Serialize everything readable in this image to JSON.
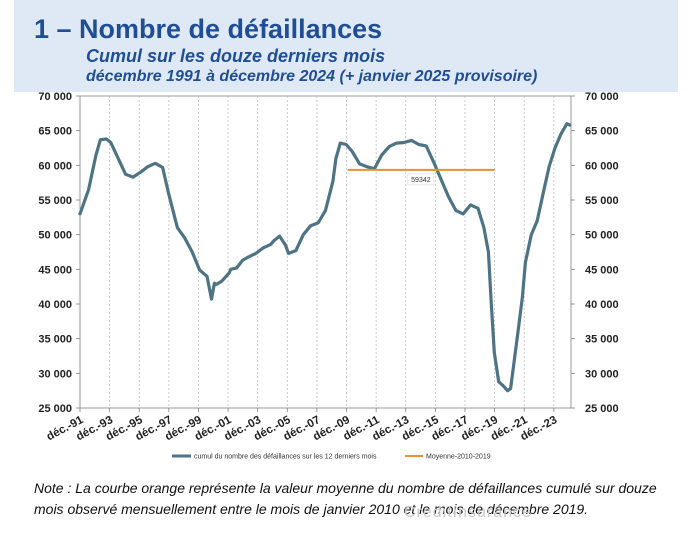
{
  "header": {
    "title": "1 – Nombre de défaillances",
    "subtitle": "Cumul sur les douze derniers mois",
    "period": "décembre 1991 à décembre 2024 (+ janvier 2025 provisoire)"
  },
  "note": "Note : La courbe orange représente la valeur moyenne du nombre de défaillances cumulé sur douze mois observé mensuellement entre le mois de janvier 2010 et le mois de décembre 2019.",
  "watermark": "CreditInsurance",
  "colors": {
    "series": "#4e7384",
    "average": "#e8912f",
    "title": "#1f4e96"
  },
  "chart_data": {
    "type": "line",
    "ylim": [
      25000,
      70000
    ],
    "yticks": [
      25000,
      30000,
      35000,
      40000,
      45000,
      50000,
      55000,
      60000,
      65000,
      70000
    ],
    "ytick_labels": [
      "25 000",
      "30 000",
      "35 000",
      "40 000",
      "45 000",
      "50 000",
      "55 000",
      "60 000",
      "65 000",
      "70 000"
    ],
    "xlim": [
      1991.92,
      2025.08
    ],
    "xticks": [
      1991.92,
      1993.92,
      1995.92,
      1997.92,
      1999.92,
      2001.92,
      2003.92,
      2005.92,
      2007.92,
      2009.92,
      2011.92,
      2013.92,
      2015.92,
      2017.92,
      2019.92,
      2021.92,
      2023.92
    ],
    "xtick_labels": [
      "déc.-91",
      "déc.-93",
      "déc.-95",
      "déc.-97",
      "déc.-99",
      "déc.-01",
      "déc.-03",
      "déc.-05",
      "déc.-07",
      "déc.-09",
      "déc.-11",
      "déc.-13",
      "déc.-15",
      "déc.-17",
      "déc.-19",
      "déc.-21",
      "déc.-23"
    ],
    "series": [
      {
        "name": "cumul du nombre des défaillances sur les 12 derniers mois",
        "x": [
          1991.92,
          1992.5,
          1993.0,
          1993.3,
          1993.7,
          1994.0,
          1994.5,
          1995.0,
          1995.5,
          1996.0,
          1996.5,
          1997.0,
          1997.5,
          1997.9,
          1998.5,
          1999.0,
          1999.5,
          2000.0,
          2000.5,
          2000.8,
          2001.0,
          2001.1,
          2001.5,
          2002.0,
          2002.1,
          2002.5,
          2002.9,
          2003.3,
          2003.8,
          2004.3,
          2004.8,
          2005.0,
          2005.4,
          2005.8,
          2006.0,
          2006.5,
          2007.0,
          2007.5,
          2008.0,
          2008.5,
          2009.0,
          2009.2,
          2009.5,
          2009.9,
          2010.3,
          2010.8,
          2011.3,
          2011.8,
          2012.3,
          2012.8,
          2013.3,
          2013.8,
          2014.3,
          2014.8,
          2015.3,
          2015.8,
          2016.3,
          2016.8,
          2017.3,
          2017.8,
          2018.3,
          2018.8,
          2019.2,
          2019.5,
          2019.7,
          2019.9,
          2020.2,
          2020.5,
          2020.8,
          2021.0,
          2021.2,
          2021.5,
          2021.8,
          2022.0,
          2022.4,
          2022.8,
          2023.2,
          2023.6,
          2024.0,
          2024.4,
          2024.8,
          2025.0
        ],
        "y": [
          53000,
          56500,
          61500,
          63700,
          63800,
          63300,
          61000,
          58700,
          58300,
          59000,
          59800,
          60300,
          59700,
          56000,
          51000,
          49500,
          47500,
          44900,
          44000,
          40700,
          43000,
          42800,
          43300,
          44500,
          45000,
          45200,
          46300,
          46800,
          47300,
          48100,
          48600,
          49100,
          49800,
          48500,
          47300,
          47700,
          50000,
          51300,
          51700,
          53500,
          57700,
          61000,
          63200,
          63000,
          62000,
          60200,
          59800,
          59500,
          61500,
          62700,
          63200,
          63300,
          63600,
          63000,
          62800,
          60500,
          58000,
          55500,
          53500,
          53000,
          54300,
          53800,
          51000,
          47500,
          40000,
          33000,
          28800,
          28200,
          27500,
          27800,
          31000,
          36000,
          41000,
          46000,
          50000,
          52000,
          56000,
          59800,
          62500,
          64500,
          66000,
          65800
        ]
      },
      {
        "name": "Moyenne-2010-2019",
        "x": [
          2010.0,
          2019.92
        ],
        "y": [
          59342,
          59342
        ]
      }
    ],
    "annotation": "59342",
    "legend_position": "bottom",
    "grid": {
      "vertical": true,
      "horizontal": false
    }
  }
}
